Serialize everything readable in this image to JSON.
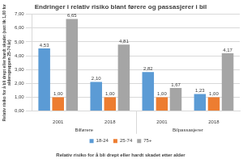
{
  "chart_data": {
    "type": "bar",
    "title": "Endringer i relativ risiko blant førere og passasjerer i bil",
    "x_label": "Relativ risiko for å bli drept eller hardt skadet etter alder",
    "y_label": [
      "Relativ risiko for å bli drept eller hardt skadet (satt lik 1,00 for",
      "aldersgruppen 25-74 år)"
    ],
    "categories": [
      "2001",
      "2018",
      "2001",
      "2018"
    ],
    "category_groups": [
      "Bilførere",
      "Bilførere",
      "Bilpassasjerer",
      "Bilpassasjerer"
    ],
    "series": [
      {
        "name": "18-24",
        "color": "#5b9bd5",
        "values": [
          4.53,
          2.1,
          2.82,
          1.23
        ],
        "value_labels": [
          "4,53",
          "2,10",
          "2,82",
          "1,23"
        ]
      },
      {
        "name": "25-74",
        "color": "#ed7d31",
        "values": [
          1.0,
          1.0,
          1.0,
          1.0
        ],
        "value_labels": [
          "1,00",
          "1,00",
          "1,00",
          "1,00"
        ]
      },
      {
        "name": "75+",
        "color": "#a5a5a5",
        "values": [
          6.65,
          4.81,
          1.67,
          4.17
        ],
        "value_labels": [
          "6,65",
          "4,81",
          "1,67",
          "4,17"
        ]
      }
    ],
    "ylim": [
      0,
      7
    ],
    "yticks": [
      {
        "value": 0,
        "label": "0,00"
      },
      {
        "value": 1,
        "label": "1,00"
      },
      {
        "value": 2,
        "label": "2,00"
      },
      {
        "value": 3,
        "label": "3,00"
      },
      {
        "value": 4,
        "label": "4,00"
      },
      {
        "value": 5,
        "label": "5,00"
      },
      {
        "value": 6,
        "label": "6,00"
      },
      {
        "value": 7,
        "label": "7,00"
      }
    ],
    "grid": true,
    "legend": "bottom",
    "data_labels": true
  }
}
